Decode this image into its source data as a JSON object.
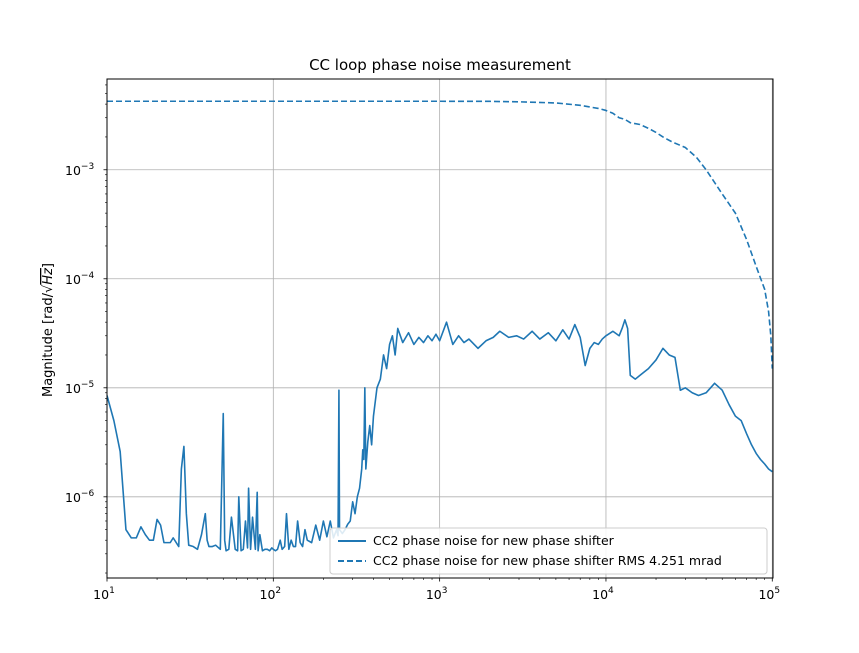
{
  "chart_data": {
    "type": "line",
    "title": "CC loop phase noise measurement",
    "xlabel": "",
    "ylabel": "Magnitude [rad/√Hz]",
    "ylabel_parts": {
      "prefix": "Magnitude [rad/",
      "radical": "√",
      "radicand": "Hz",
      "suffix": "]"
    },
    "x_scale": "log",
    "y_scale": "log",
    "xlim": [
      10,
      101000
    ],
    "ylim": [
      1.8e-07,
      0.0068
    ],
    "grid": true,
    "legend_position": "lower-right",
    "x_ticks": [
      {
        "value": 10,
        "base": "10",
        "exp": "1"
      },
      {
        "value": 100,
        "base": "10",
        "exp": "2"
      },
      {
        "value": 1000,
        "base": "10",
        "exp": "3"
      },
      {
        "value": 10000,
        "base": "10",
        "exp": "4"
      },
      {
        "value": 100000,
        "base": "10",
        "exp": "5"
      }
    ],
    "y_ticks": [
      {
        "value": 1e-06,
        "base": "10",
        "exp": "−6"
      },
      {
        "value": 1e-05,
        "base": "10",
        "exp": "−5"
      },
      {
        "value": 0.0001,
        "base": "10",
        "exp": "−4"
      },
      {
        "value": 0.001,
        "base": "10",
        "exp": "−3"
      }
    ],
    "series": [
      {
        "name": "CC2 phase noise for new phase shifter",
        "style": "solid",
        "color": "#1f77b4",
        "x": [
          10,
          11,
          12,
          13,
          14,
          15,
          16,
          17,
          18,
          19,
          20,
          21,
          22,
          24,
          25,
          27,
          28,
          29,
          30,
          31,
          33,
          35,
          37,
          39,
          40,
          41,
          43,
          45,
          48,
          50,
          51,
          52,
          54,
          56,
          59,
          61,
          62,
          64,
          66,
          68,
          70,
          71,
          73,
          75,
          78,
          80,
          81,
          83,
          86,
          89,
          92,
          95,
          98,
          100,
          103,
          106,
          110,
          113,
          117,
          120,
          124,
          128,
          132,
          136,
          140,
          145,
          150,
          155,
          160,
          170,
          180,
          190,
          200,
          210,
          220,
          230,
          240,
          245,
          248,
          250,
          255,
          260,
          270,
          280,
          290,
          300,
          310,
          320,
          330,
          340,
          345,
          350,
          355,
          360,
          370,
          380,
          390,
          400,
          420,
          440,
          460,
          480,
          500,
          520,
          540,
          560,
          600,
          650,
          700,
          750,
          800,
          850,
          900,
          950,
          1000,
          1100,
          1200,
          1300,
          1400,
          1500,
          1700,
          1900,
          2100,
          2300,
          2600,
          2900,
          3200,
          3600,
          4000,
          4500,
          5000,
          5500,
          6000,
          6500,
          7000,
          7500,
          8000,
          8500,
          9000,
          9500,
          10000,
          11000,
          12000,
          12500,
          13000,
          13500,
          14000,
          15000,
          16000,
          17000,
          18000,
          20000,
          22000,
          24000,
          26000,
          28000,
          30000,
          33000,
          36000,
          40000,
          45000,
          50000,
          55000,
          60000,
          65000,
          70000,
          75000,
          80000,
          85000,
          90000,
          95000,
          100000
        ],
        "y": [
          8.5e-06,
          5e-06,
          2.6e-06,
          5e-07,
          4.2e-07,
          4.2e-07,
          5.3e-07,
          4.5e-07,
          4e-07,
          4e-07,
          6.2e-07,
          5.5e-07,
          3.8e-07,
          3.8e-07,
          4.2e-07,
          3.5e-07,
          1.8e-06,
          2.9e-06,
          7e-07,
          3.6e-07,
          3.5e-07,
          3.3e-07,
          4.5e-07,
          7e-07,
          4e-07,
          3.5e-07,
          3.5e-07,
          3.6e-07,
          3.3e-07,
          5.8e-06,
          4e-07,
          3.2e-07,
          3.3e-07,
          6.5e-07,
          3.3e-07,
          3.2e-07,
          1e-06,
          3.2e-07,
          3.3e-07,
          6e-07,
          3.4e-07,
          1.2e-06,
          3.3e-07,
          6.5e-07,
          3.3e-07,
          1.1e-06,
          3.2e-07,
          4.5e-07,
          3.2e-07,
          3.3e-07,
          3.3e-07,
          3.2e-07,
          3.4e-07,
          3.3e-07,
          3.2e-07,
          3.3e-07,
          4e-07,
          3.3e-07,
          3.5e-07,
          7e-07,
          3.3e-07,
          4e-07,
          3.5e-07,
          3.5e-07,
          6e-07,
          3.8e-07,
          3.5e-07,
          5e-07,
          4e-07,
          3.8e-07,
          5.5e-07,
          4e-07,
          6e-07,
          4.3e-07,
          6e-07,
          4.2e-07,
          5e-07,
          4.4e-07,
          9.5e-06,
          5e-07,
          4.8e-07,
          4.6e-07,
          5e-07,
          5.6e-07,
          6e-07,
          9e-07,
          7e-07,
          1e-06,
          1.2e-06,
          1.8e-06,
          2.7e-06,
          2.2e-06,
          1e-05,
          1.8e-06,
          3.2e-06,
          4.5e-06,
          3e-06,
          5.5e-06,
          1e-05,
          1.2e-05,
          2e-05,
          1.5e-05,
          2.5e-05,
          3e-05,
          2e-05,
          3.5e-05,
          2.6e-05,
          3.2e-05,
          2.5e-05,
          2.9e-05,
          2.6e-05,
          3e-05,
          2.7e-05,
          3.1e-05,
          2.7e-05,
          4e-05,
          2.5e-05,
          3e-05,
          2.6e-05,
          2.8e-05,
          2.3e-05,
          2.7e-05,
          2.9e-05,
          3.3e-05,
          2.9e-05,
          3e-05,
          2.8e-05,
          3.3e-05,
          2.8e-05,
          3.2e-05,
          2.7e-05,
          3.4e-05,
          2.8e-05,
          3.8e-05,
          2.9e-05,
          1.6e-05,
          2.3e-05,
          2.6e-05,
          2.5e-05,
          2.8e-05,
          3e-05,
          3.3e-05,
          3e-05,
          3.5e-05,
          4.2e-05,
          3.5e-05,
          1.3e-05,
          1.2e-05,
          1.3e-05,
          1.4e-05,
          1.5e-05,
          1.8e-05,
          2.3e-05,
          2e-05,
          1.9e-05,
          9.5e-06,
          1e-05,
          9e-06,
          8.5e-06,
          9e-06,
          1.1e-05,
          9.5e-06,
          7e-06,
          5.5e-06,
          5e-06,
          3.8e-06,
          3e-06,
          2.5e-06,
          2.2e-06,
          2e-06,
          1.8e-06,
          1.7e-06
        ]
      },
      {
        "name": "CC2 phase noise for new phase shifter RMS 4.251 mrad",
        "style": "dashed",
        "color": "#1f77b4",
        "x": [
          10,
          100,
          1000,
          2000,
          3000,
          5000,
          7000,
          9000,
          10000,
          11000,
          12000,
          13000,
          14000,
          16000,
          18000,
          20000,
          22000,
          25000,
          30000,
          35000,
          40000,
          50000,
          60000,
          70000,
          80000,
          90000,
          95000,
          98000,
          100000
        ],
        "y": [
          0.00425,
          0.00425,
          0.00425,
          0.00424,
          0.0042,
          0.0041,
          0.0039,
          0.00365,
          0.0035,
          0.0033,
          0.003,
          0.0029,
          0.0027,
          0.0026,
          0.0024,
          0.0022,
          0.002,
          0.0018,
          0.0016,
          0.0013,
          0.001,
          0.0006,
          0.0004,
          0.00023,
          0.00013,
          8e-05,
          5e-05,
          3e-05,
          1.5e-05
        ]
      }
    ]
  }
}
